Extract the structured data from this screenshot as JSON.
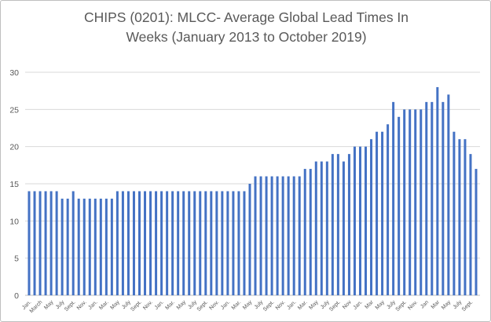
{
  "chart_data": {
    "type": "bar",
    "title_line1": "CHIPS (0201): MLCC- Average Global Lead Times In",
    "title_line2": "Weeks (January 2013 to October 2019)",
    "xlabel": "",
    "ylabel": "",
    "ylim": [
      0,
      30
    ],
    "yticks": [
      0,
      5,
      10,
      15,
      20,
      25,
      30
    ],
    "grid": true,
    "legend": "none",
    "color": "#4472C4",
    "tick_labels": [
      "Jan.",
      "",
      "March",
      "",
      "May",
      "",
      "July",
      "",
      "Sept.",
      "",
      "Nov.",
      "",
      "Jan.",
      "",
      "Mar.",
      "",
      "May",
      "",
      "July",
      "",
      "Sept.",
      "",
      "Nov.",
      "",
      "Jan.",
      "",
      "Mar.",
      "",
      "May",
      "",
      "July",
      "",
      "Sept.",
      "",
      "Nov.",
      "",
      "Jan.",
      "",
      "Mar.",
      "",
      "May",
      "",
      "July",
      "",
      "Sept.",
      "",
      "Nov.",
      "",
      "Jan.",
      "",
      "Mar.",
      "",
      "May",
      "",
      "July",
      "",
      "Sept.",
      "",
      "Nov",
      "",
      "Jan.",
      "",
      "Mar",
      "",
      "May",
      "",
      "July",
      "",
      "Sept.",
      "",
      "Nov.",
      "",
      "Jan",
      "",
      "Mar",
      "",
      "May",
      "",
      "July",
      "",
      "Sept.",
      ""
    ],
    "values": [
      14,
      14,
      14,
      14,
      14,
      14,
      13,
      13,
      14,
      13,
      13,
      13,
      13,
      13,
      13,
      13,
      14,
      14,
      14,
      14,
      14,
      14,
      14,
      14,
      14,
      14,
      14,
      14,
      14,
      14,
      14,
      14,
      14,
      14,
      14,
      14,
      14,
      14,
      14,
      14,
      15,
      16,
      16,
      16,
      16,
      16,
      16,
      16,
      16,
      16,
      17,
      17,
      18,
      18,
      18,
      19,
      19,
      18,
      19,
      20,
      20,
      20,
      21,
      22,
      22,
      23,
      26,
      24,
      25,
      25,
      25,
      25,
      26,
      26,
      28,
      26,
      27,
      22,
      21,
      21,
      19,
      17
    ]
  }
}
